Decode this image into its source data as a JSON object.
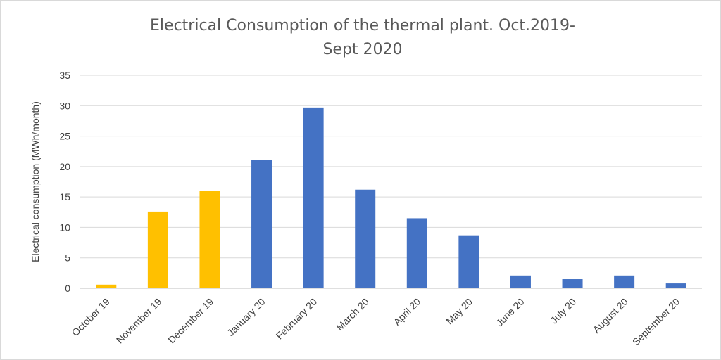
{
  "chart_data": {
    "type": "bar",
    "title_lines": [
      "Electrical Consumption of the thermal plant. Oct.2019-",
      "Sept 2020"
    ],
    "xlabel": "",
    "ylabel": "Electrical consumption (MWh/month)",
    "ylim": [
      0,
      35
    ],
    "yticks": [
      0,
      5,
      10,
      15,
      20,
      25,
      30,
      35
    ],
    "grid": true,
    "legend": "none",
    "categories": [
      "October 19",
      "November 19",
      "December 19",
      "January 20",
      "February 20",
      "March 20",
      "April 20",
      "May 20",
      "June 20",
      "July 20",
      "August 20",
      "September 20"
    ],
    "values": [
      0.6,
      12.6,
      16.0,
      21.1,
      29.7,
      16.2,
      11.5,
      8.7,
      2.1,
      1.5,
      2.1,
      0.8
    ],
    "bar_colors": [
      "#FFC000",
      "#FFC000",
      "#FFC000",
      "#4472C4",
      "#4472C4",
      "#4472C4",
      "#4472C4",
      "#4472C4",
      "#4472C4",
      "#4472C4",
      "#4472C4",
      "#4472C4"
    ]
  }
}
